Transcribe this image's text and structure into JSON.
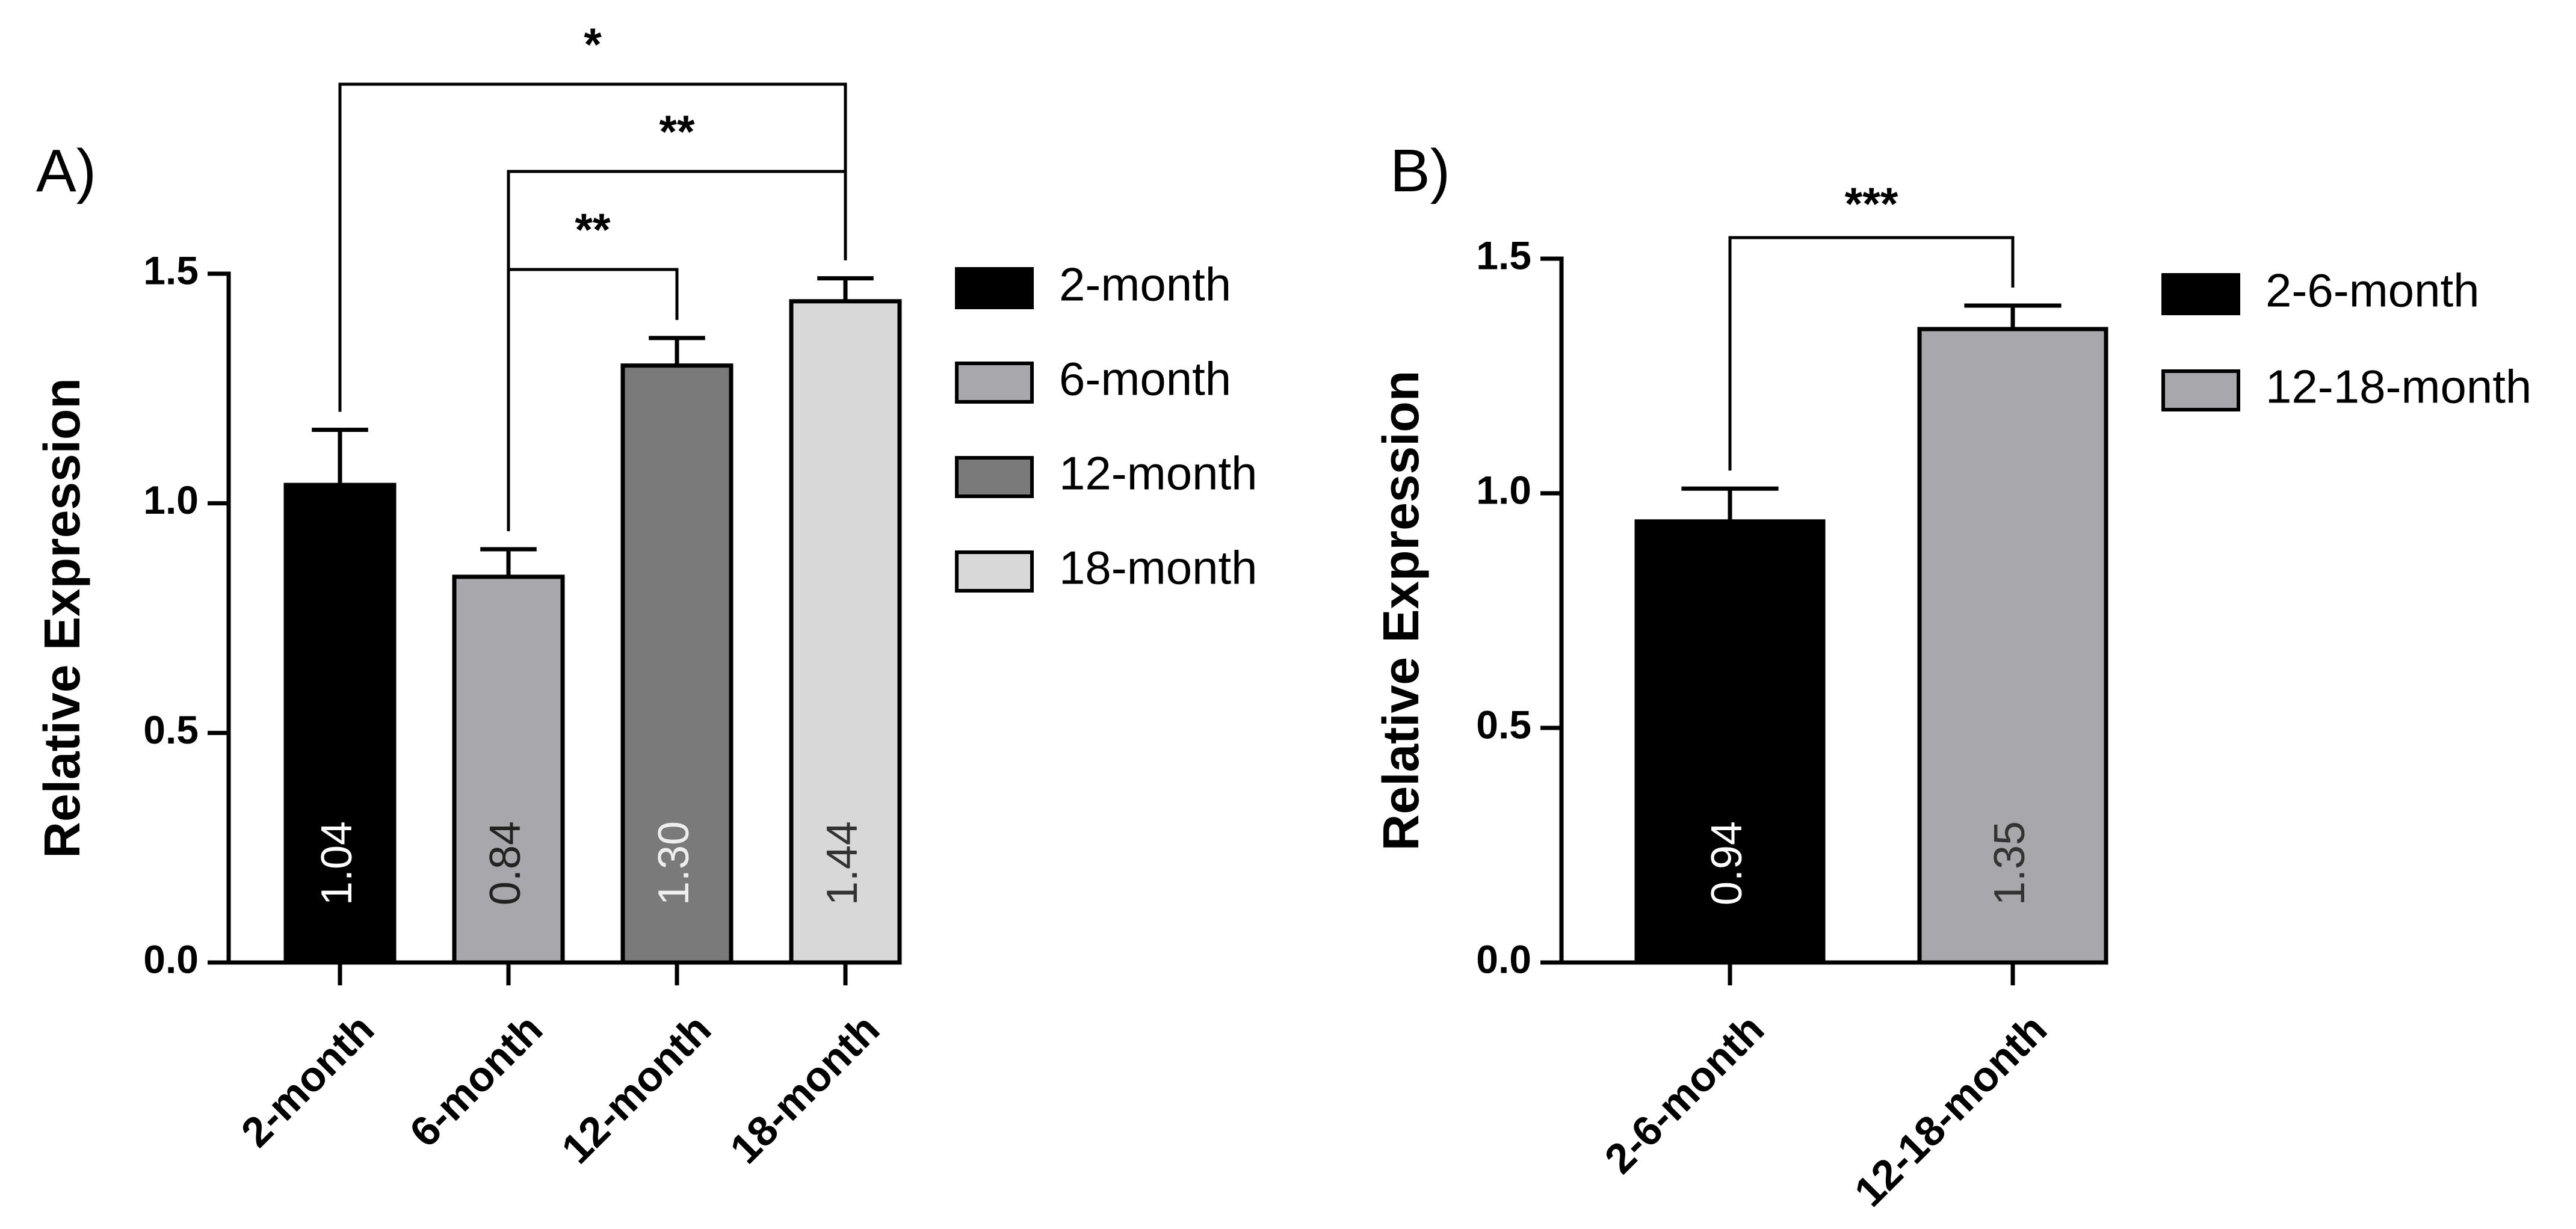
{
  "chart_data": [
    {
      "type": "bar",
      "panel_label": "A)",
      "ylabel": "Relative Expression",
      "xlabel": "",
      "ylim": [
        0,
        1.5
      ],
      "yticks": [
        "0.0",
        "0.5",
        "1.0",
        "1.5"
      ],
      "categories": [
        "2-month",
        "6-month",
        "12-month",
        "18-month"
      ],
      "values": [
        1.04,
        0.84,
        1.3,
        1.44
      ],
      "value_labels": [
        "1.04",
        "0.84",
        "1.30",
        "1.44"
      ],
      "errors": [
        0.12,
        0.06,
        0.06,
        0.05
      ],
      "colors": [
        "#000000",
        "#a8a8ac",
        "#7a7a7a",
        "#d8d8d8"
      ],
      "label_colors": [
        "#ffffff",
        "#222222",
        "#eeeeee",
        "#333333"
      ],
      "legend": [
        "2-month",
        "6-month",
        "12-month",
        "18-month"
      ],
      "legend_position": "right",
      "significance": [
        {
          "from": 0,
          "to": 3,
          "label": "*"
        },
        {
          "from": 1,
          "to": 3,
          "label": "**"
        },
        {
          "from": 1,
          "to": 2,
          "label": "**"
        }
      ]
    },
    {
      "type": "bar",
      "panel_label": "B)",
      "ylabel": "Relative Expression",
      "xlabel": "",
      "ylim": [
        0,
        1.5
      ],
      "yticks": [
        "0.0",
        "0.5",
        "1.0",
        "1.5"
      ],
      "categories": [
        "2-6-month",
        "12-18-month"
      ],
      "values": [
        0.94,
        1.35
      ],
      "value_labels": [
        "0.94",
        "1.35"
      ],
      "errors": [
        0.07,
        0.05
      ],
      "colors": [
        "#000000",
        "#a8a8ac"
      ],
      "label_colors": [
        "#ffffff",
        "#333333"
      ],
      "legend": [
        "2-6-month",
        "12-18-month"
      ],
      "legend_position": "right",
      "significance": [
        {
          "from": 0,
          "to": 1,
          "label": "***"
        }
      ]
    }
  ]
}
